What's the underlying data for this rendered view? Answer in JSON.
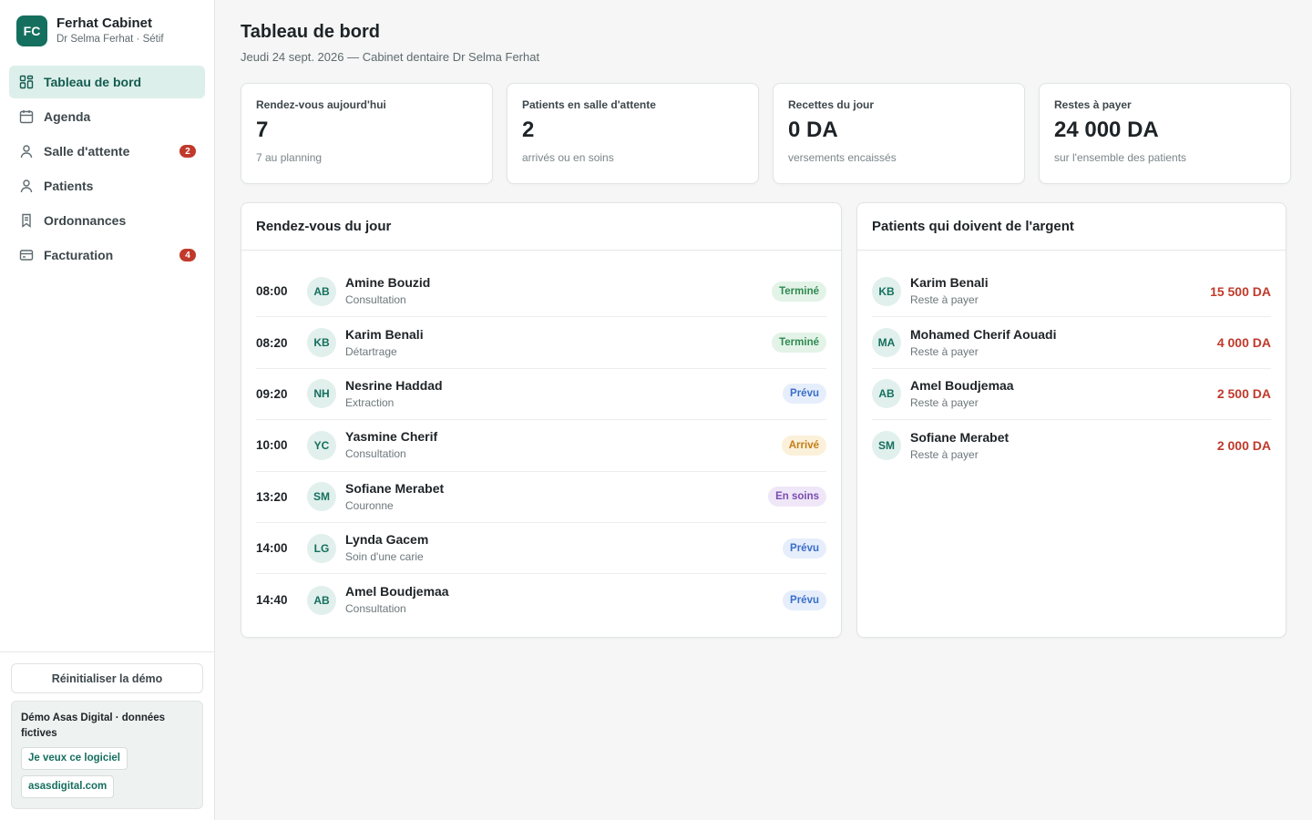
{
  "brand": {
    "logo": "FC",
    "name": "Ferhat Cabinet",
    "subtitle": "Dr Selma Ferhat · Sétif"
  },
  "nav": [
    {
      "label": "Tableau de bord",
      "icon": "dashboard-icon",
      "active": true,
      "badge": null
    },
    {
      "label": "Agenda",
      "icon": "calendar-icon",
      "active": false,
      "badge": null
    },
    {
      "label": "Salle d'attente",
      "icon": "user-icon",
      "active": false,
      "badge": "2"
    },
    {
      "label": "Patients",
      "icon": "user-icon",
      "active": false,
      "badge": null
    },
    {
      "label": "Ordonnances",
      "icon": "bookmark-icon",
      "active": false,
      "badge": null
    },
    {
      "label": "Facturation",
      "icon": "card-icon",
      "active": false,
      "badge": "4"
    }
  ],
  "footer": {
    "reset_label": "Réinitialiser la démo",
    "demo_title": "Démo Asas Digital · données fictives",
    "link1": "Je veux ce logiciel",
    "link2": "asasdigital.com"
  },
  "header": {
    "title": "Tableau de bord",
    "subtitle": "Jeudi 24 sept. 2026 — Cabinet dentaire Dr Selma Ferhat"
  },
  "stats": [
    {
      "label": "Rendez-vous aujourd'hui",
      "value": "7",
      "note": "7 au planning"
    },
    {
      "label": "Patients en salle d'attente",
      "value": "2",
      "note": "arrivés ou en soins"
    },
    {
      "label": "Recettes du jour",
      "value": "0 DA",
      "note": "versements encaissés"
    },
    {
      "label": "Restes à payer",
      "value": "24 000 DA",
      "note": "sur l'ensemble des patients"
    }
  ],
  "appointments": {
    "title": "Rendez-vous du jour",
    "rows": [
      {
        "time": "08:00",
        "initials": "AB",
        "name": "Amine Bouzid",
        "type": "Consultation",
        "status": "Terminé",
        "status_kind": "done"
      },
      {
        "time": "08:20",
        "initials": "KB",
        "name": "Karim Benali",
        "type": "Détartrage",
        "status": "Terminé",
        "status_kind": "done"
      },
      {
        "time": "09:20",
        "initials": "NH",
        "name": "Nesrine Haddad",
        "type": "Extraction",
        "status": "Prévu",
        "status_kind": "planned"
      },
      {
        "time": "10:00",
        "initials": "YC",
        "name": "Yasmine Cherif",
        "type": "Consultation",
        "status": "Arrivé",
        "status_kind": "arrived"
      },
      {
        "time": "13:20",
        "initials": "SM",
        "name": "Sofiane Merabet",
        "type": "Couronne",
        "status": "En soins",
        "status_kind": "care"
      },
      {
        "time": "14:00",
        "initials": "LG",
        "name": "Lynda Gacem",
        "type": "Soin d'une carie",
        "status": "Prévu",
        "status_kind": "planned"
      },
      {
        "time": "14:40",
        "initials": "AB",
        "name": "Amel Boudjemaa",
        "type": "Consultation",
        "status": "Prévu",
        "status_kind": "planned"
      }
    ]
  },
  "debtors": {
    "title": "Patients qui doivent de l'argent",
    "rows": [
      {
        "initials": "KB",
        "name": "Karim Benali",
        "note": "Reste à payer",
        "amount": "15 500 DA"
      },
      {
        "initials": "MA",
        "name": "Mohamed Cherif Aouadi",
        "note": "Reste à payer",
        "amount": "4 000 DA"
      },
      {
        "initials": "AB",
        "name": "Amel Boudjemaa",
        "note": "Reste à payer",
        "amount": "2 500 DA"
      },
      {
        "initials": "SM",
        "name": "Sofiane Merabet",
        "note": "Reste à payer",
        "amount": "2 000 DA"
      }
    ]
  },
  "colors": {
    "accent": "#156f5f",
    "danger": "#c0392b",
    "active_bg": "#dcefeb"
  }
}
